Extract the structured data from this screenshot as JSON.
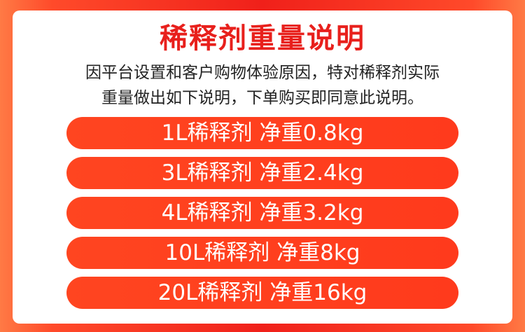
{
  "title": "稀释剂重量说明",
  "description": [
    "因平台设置和客户购物体验原因，特对稀释剂实际",
    "重量做出如下说明，下单购买即同意此说明。"
  ],
  "items": [
    "1L稀释剂 净重0.8kg",
    "3L稀释剂 净重2.4kg",
    "4L稀释剂 净重3.2kg",
    "10L稀释剂 净重8kg",
    "20L稀释剂 净重16kg"
  ],
  "colors": {
    "accent": "#e8201c",
    "pill": "#ff4020",
    "text": "#222222"
  }
}
